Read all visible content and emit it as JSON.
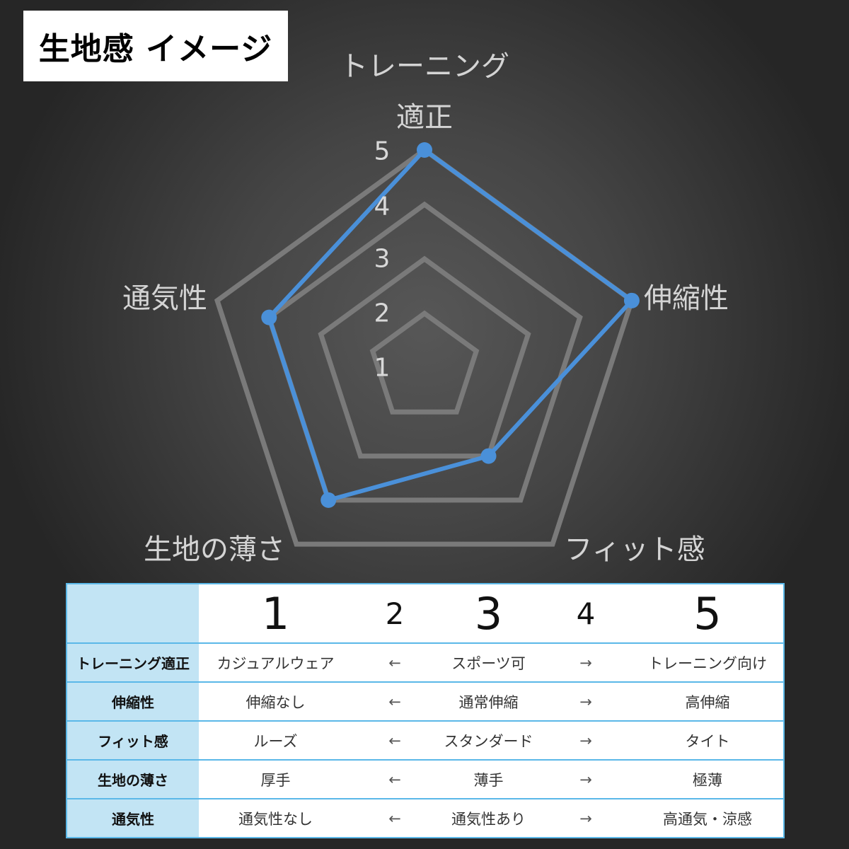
{
  "title": "生地感 イメージ",
  "chart_data": {
    "type": "radar",
    "axes": [
      "トレーニング適正",
      "伸縮性",
      "フィット感",
      "生地の薄さ",
      "通気性"
    ],
    "axis_label_lines": [
      [
        "トレーニング",
        "適正"
      ],
      [
        "伸縮性"
      ],
      [
        "フィット感"
      ],
      [
        "生地の薄さ"
      ],
      [
        "通気性"
      ]
    ],
    "values": [
      5,
      5,
      3,
      4,
      4
    ],
    "range": [
      1,
      5
    ],
    "tick_labels": [
      "1",
      "2",
      "3",
      "4",
      "5"
    ],
    "grid": true,
    "series_color": "#4a90d9",
    "grid_color": "#7a7a7a"
  },
  "table": {
    "scale": [
      "1",
      "2",
      "3",
      "4",
      "5"
    ],
    "rows": [
      {
        "label": "トレーニング適正",
        "low": "カジュアルウェア",
        "left_arrow": "←",
        "mid": "スポーツ可",
        "right_arrow": "→",
        "high": "トレーニング向け"
      },
      {
        "label": "伸縮性",
        "low": "伸縮なし",
        "left_arrow": "←",
        "mid": "通常伸縮",
        "right_arrow": "→",
        "high": "高伸縮"
      },
      {
        "label": "フィット感",
        "low": "ルーズ",
        "left_arrow": "←",
        "mid": "スタンダード",
        "right_arrow": "→",
        "high": "タイト"
      },
      {
        "label": "生地の薄さ",
        "low": "厚手",
        "left_arrow": "←",
        "mid": "薄手",
        "right_arrow": "→",
        "high": "極薄"
      },
      {
        "label": "通気性",
        "low": "通気性なし",
        "left_arrow": "←",
        "mid": "通気性あり",
        "right_arrow": "→",
        "high": "高通気・涼感"
      }
    ]
  }
}
